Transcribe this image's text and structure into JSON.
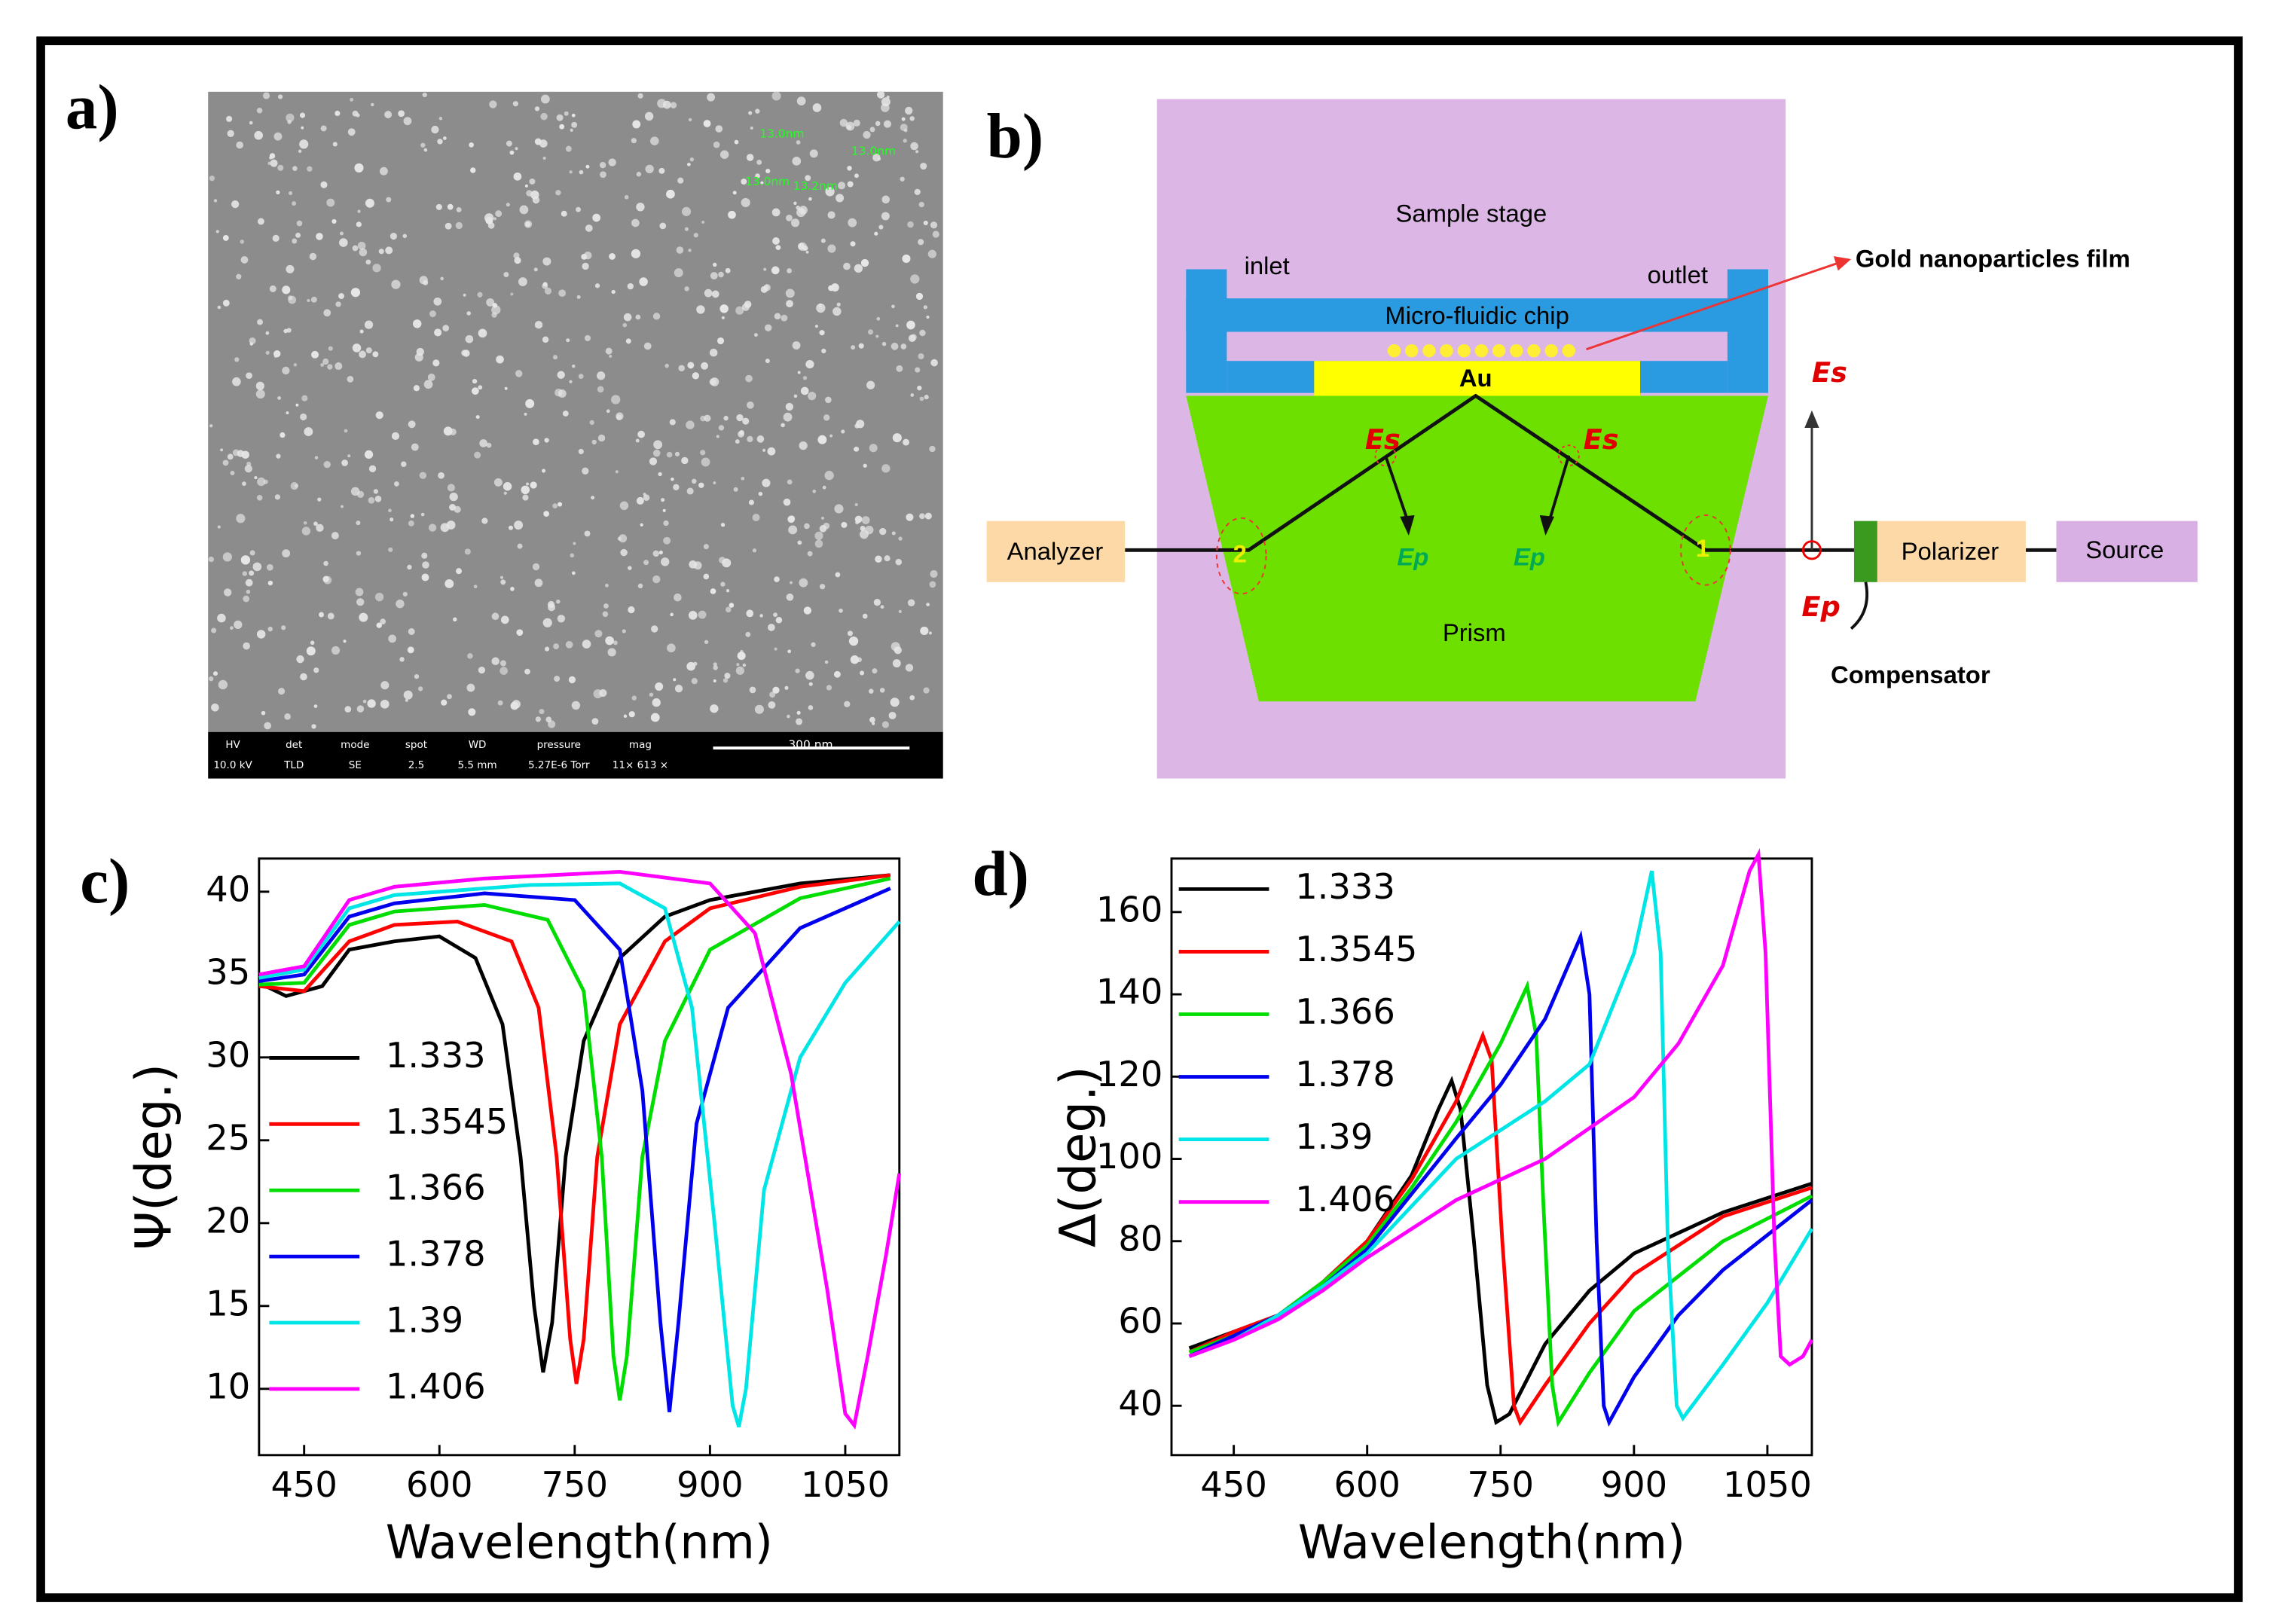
{
  "panels": {
    "a": "a)",
    "b": "b)",
    "c": "c)",
    "d": "d)"
  },
  "sem": {
    "info_headers": [
      "HV",
      "det",
      "mode",
      "spot",
      "WD",
      "pressure",
      "mag"
    ],
    "info_values": [
      "10.0 kV",
      "TLD",
      "SE",
      "2.5",
      "5.5 mm",
      "5.27E-6 Torr",
      "11× 613 ×"
    ],
    "scale_bar": "300 nm",
    "measurements": [
      "13.0nm",
      "13.0nm",
      "13.0nm",
      "13.2nm"
    ]
  },
  "diagram": {
    "sample_stage": "Sample stage",
    "inlet": "inlet",
    "outlet": "outlet",
    "chip": "Micro-fluidic chip",
    "film": "Gold nanoparticles film",
    "au": "Au",
    "es_left": "Es",
    "es_right": "Es",
    "es_beam": "Es",
    "ep_left": "Ep",
    "ep_right": "Ep",
    "ep_beam": "Ep",
    "prism": "Prism",
    "analyzer": "Analyzer",
    "polarizer": "Polarizer",
    "source": "Source",
    "compensator": "Compensator",
    "point_1": "1",
    "point_2": "2"
  },
  "chart_data": [
    {
      "type": "line",
      "xlabel": "Wavelength(nm)",
      "ylabel": "Ψ(deg.)",
      "xlim": [
        400,
        1110
      ],
      "ylim": [
        6,
        42
      ],
      "xticks": [
        450,
        600,
        750,
        900,
        1050
      ],
      "yticks": [
        10,
        15,
        20,
        25,
        30,
        35,
        40
      ],
      "legend": "lower left",
      "series": [
        {
          "name": "1.333",
          "color": "#000000",
          "x": [
            400,
            430,
            470,
            500,
            550,
            600,
            640,
            670,
            690,
            705,
            715,
            725,
            740,
            760,
            800,
            850,
            900,
            1000,
            1100
          ],
          "values": [
            34.5,
            33.7,
            34.3,
            36.5,
            37,
            37.3,
            36,
            32,
            24,
            15,
            11,
            14,
            24,
            31,
            36,
            38.5,
            39.5,
            40.5,
            41
          ]
        },
        {
          "name": "1.3545",
          "color": "#ff0000",
          "x": [
            400,
            450,
            500,
            550,
            620,
            680,
            710,
            730,
            745,
            752,
            760,
            775,
            800,
            850,
            900,
            1000,
            1100
          ],
          "values": [
            34.3,
            34,
            37,
            38,
            38.2,
            37,
            33,
            24,
            13,
            10.3,
            13,
            24,
            32,
            37,
            39,
            40.3,
            41
          ]
        },
        {
          "name": "1.366",
          "color": "#00dd00",
          "x": [
            400,
            450,
            500,
            550,
            650,
            720,
            760,
            780,
            793,
            800,
            808,
            825,
            850,
            900,
            1000,
            1100
          ],
          "values": [
            34.4,
            34.5,
            38,
            38.8,
            39.2,
            38.3,
            34,
            24,
            12,
            9.3,
            12,
            24,
            31,
            36.5,
            39.6,
            40.8
          ]
        },
        {
          "name": "1.378",
          "color": "#0000ee",
          "x": [
            400,
            450,
            500,
            550,
            650,
            750,
            800,
            825,
            845,
            855,
            865,
            885,
            920,
            1000,
            1100
          ],
          "values": [
            34.6,
            35,
            38.5,
            39.3,
            39.9,
            39.5,
            36.5,
            28,
            14,
            8.6,
            14,
            26,
            33,
            37.8,
            40.2
          ]
        },
        {
          "name": "1.39",
          "color": "#00e5e5",
          "x": [
            400,
            450,
            500,
            550,
            700,
            800,
            850,
            880,
            905,
            925,
            932,
            940,
            960,
            1000,
            1050,
            1110
          ],
          "values": [
            34.8,
            35.3,
            39,
            39.8,
            40.4,
            40.5,
            39,
            33,
            20,
            9,
            7.7,
            10,
            22,
            30,
            34.5,
            38.2
          ]
        },
        {
          "name": "1.406",
          "color": "#ff00ff",
          "x": [
            400,
            450,
            500,
            550,
            650,
            800,
            900,
            950,
            990,
            1030,
            1050,
            1060,
            1075,
            1095,
            1110
          ],
          "values": [
            35,
            35.5,
            39.5,
            40.3,
            40.8,
            41.2,
            40.5,
            37.5,
            29,
            16,
            8.5,
            7.8,
            12,
            18,
            23
          ]
        }
      ]
    },
    {
      "type": "line",
      "xlabel": "Wavelength(nm)",
      "ylabel": "Δ(deg.)",
      "xlim": [
        380,
        1100
      ],
      "ylim": [
        28,
        173
      ],
      "xticks": [
        450,
        600,
        750,
        900,
        1050
      ],
      "yticks": [
        40,
        60,
        80,
        100,
        120,
        140,
        160
      ],
      "legend": "upper left",
      "series": [
        {
          "name": "1.333",
          "color": "#000000",
          "x": [
            400,
            450,
            500,
            550,
            600,
            650,
            680,
            695,
            705,
            720,
            735,
            745,
            760,
            800,
            850,
            900,
            1000,
            1100
          ],
          "values": [
            54,
            58,
            62,
            70,
            80,
            96,
            112,
            119,
            112,
            80,
            45,
            36,
            38,
            55,
            68,
            77,
            87,
            94
          ]
        },
        {
          "name": "1.3545",
          "color": "#ff0000",
          "x": [
            400,
            450,
            500,
            550,
            600,
            650,
            700,
            730,
            740,
            752,
            765,
            772,
            800,
            850,
            900,
            1000,
            1100
          ],
          "values": [
            53,
            58,
            62,
            70,
            80,
            95,
            114,
            130,
            124,
            80,
            40,
            36,
            45,
            60,
            72,
            86,
            93
          ]
        },
        {
          "name": "1.366",
          "color": "#00dd00",
          "x": [
            400,
            450,
            500,
            550,
            600,
            650,
            700,
            750,
            780,
            790,
            798,
            808,
            815,
            850,
            900,
            1000,
            1100
          ],
          "values": [
            53,
            57,
            62,
            70,
            79,
            93,
            109,
            128,
            142,
            130,
            90,
            45,
            36,
            48,
            63,
            80,
            91
          ]
        },
        {
          "name": "1.378",
          "color": "#0000ee",
          "x": [
            400,
            450,
            500,
            550,
            600,
            700,
            750,
            800,
            840,
            850,
            858,
            866,
            872,
            900,
            950,
            1000,
            1100
          ],
          "values": [
            52,
            57,
            62,
            69,
            78,
            105,
            118,
            134,
            154,
            140,
            80,
            40,
            36,
            47,
            62,
            73,
            90
          ]
        },
        {
          "name": "1.39",
          "color": "#00e5e5",
          "x": [
            400,
            450,
            500,
            550,
            600,
            700,
            800,
            850,
            900,
            920,
            930,
            938,
            948,
            955,
            1000,
            1050,
            1100
          ],
          "values": [
            52,
            56,
            62,
            69,
            77,
            100,
            114,
            123,
            150,
            170,
            150,
            80,
            40,
            37,
            50,
            65,
            83
          ]
        },
        {
          "name": "1.406",
          "color": "#ff00ff",
          "x": [
            400,
            450,
            500,
            550,
            600,
            700,
            800,
            900,
            950,
            1000,
            1030,
            1040,
            1048,
            1058,
            1065,
            1075,
            1090,
            1100
          ],
          "values": [
            52,
            56,
            61,
            68,
            76,
            90,
            100,
            115,
            128,
            147,
            170,
            174,
            150,
            80,
            52,
            50,
            52,
            56
          ]
        }
      ]
    }
  ]
}
